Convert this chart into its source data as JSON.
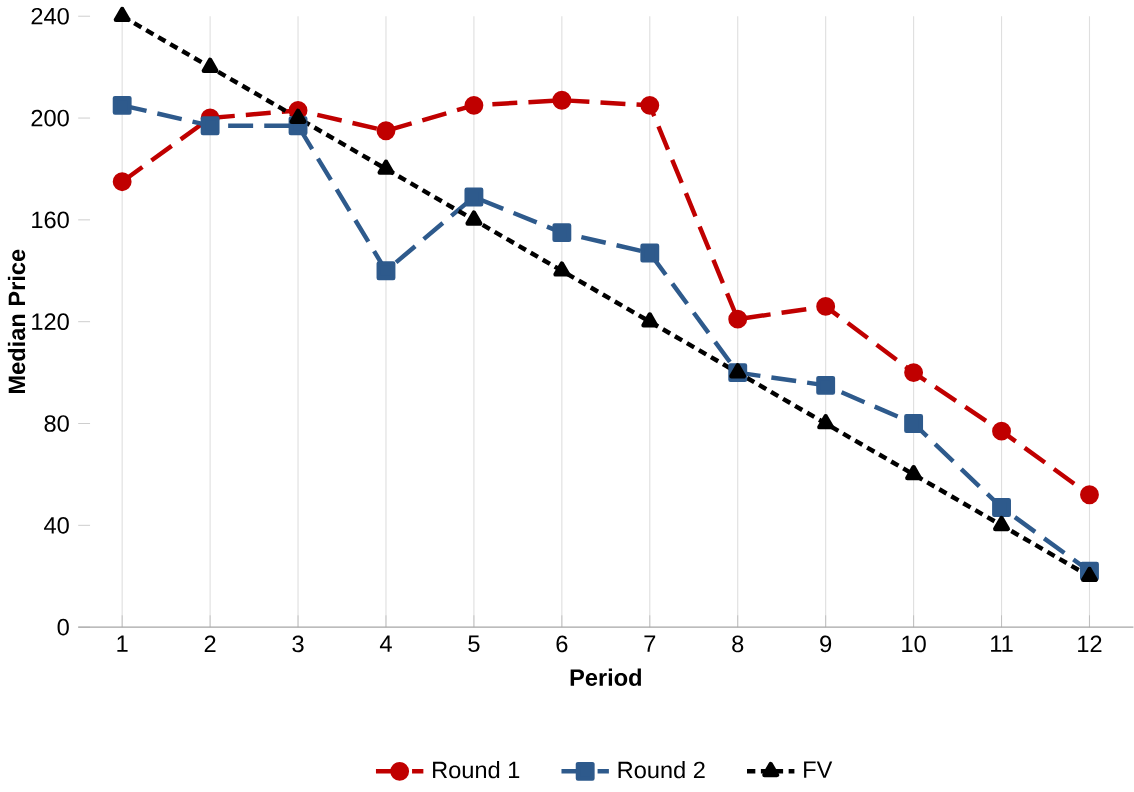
{
  "chart_data": {
    "type": "line",
    "xlabel": "Period",
    "ylabel": "Median Price",
    "categories": [
      "1",
      "2",
      "3",
      "4",
      "5",
      "6",
      "7",
      "8",
      "9",
      "10",
      "11",
      "12"
    ],
    "series": [
      {
        "name": "Round 1",
        "color": "#c00000",
        "marker": "circle",
        "line_style": "dashed",
        "values": [
          175,
          200,
          203,
          195,
          205,
          207,
          205,
          121,
          126,
          100,
          77,
          52
        ]
      },
      {
        "name": "Round 2",
        "color": "#2e5a8c",
        "marker": "square",
        "line_style": "dashed",
        "values": [
          205,
          197,
          197,
          140,
          169,
          155,
          147,
          100,
          95,
          80,
          47,
          22
        ]
      },
      {
        "name": "FV",
        "color": "#000000",
        "marker": "triangle",
        "line_style": "dotted",
        "values": [
          240,
          220,
          200,
          180,
          160,
          140,
          120,
          100,
          80,
          60,
          40,
          20
        ]
      }
    ],
    "ylim": [
      0,
      240
    ],
    "yticks": [
      0,
      40,
      80,
      120,
      160,
      200,
      240
    ],
    "grid": "x",
    "legend": "bottom"
  }
}
